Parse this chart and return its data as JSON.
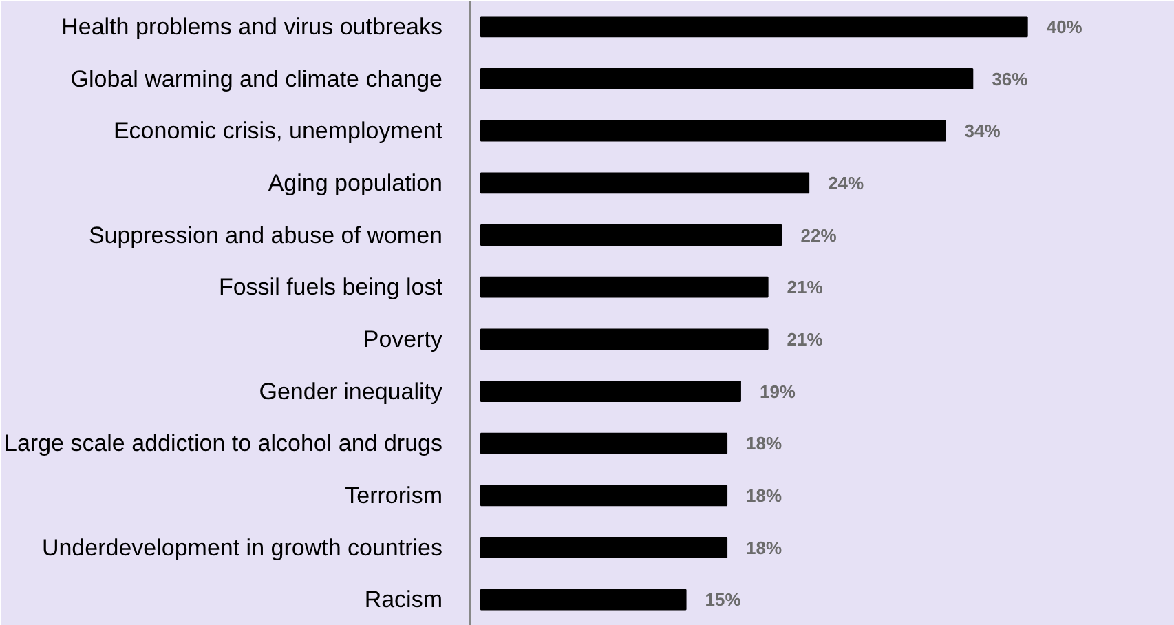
{
  "chart_data": {
    "type": "bar",
    "orientation": "horizontal",
    "categories": [
      "Health problems and virus outbreaks",
      "Global warming and climate change",
      "Economic crisis, unemployment",
      "Aging population",
      "Suppression and abuse of women",
      "Fossil fuels being lost",
      "Poverty",
      "Gender inequality",
      "Large scale addiction to alcohol and drugs",
      "Terrorism",
      "Underdevelopment in growth countries",
      "Racism"
    ],
    "values": [
      40,
      36,
      34,
      24,
      22,
      21,
      21,
      19,
      18,
      18,
      18,
      15
    ],
    "value_labels": [
      "40%",
      "36%",
      "34%",
      "24%",
      "22%",
      "21%",
      "21%",
      "19%",
      "18%",
      "18%",
      "18%",
      "15%"
    ],
    "color": "#000000"
  }
}
